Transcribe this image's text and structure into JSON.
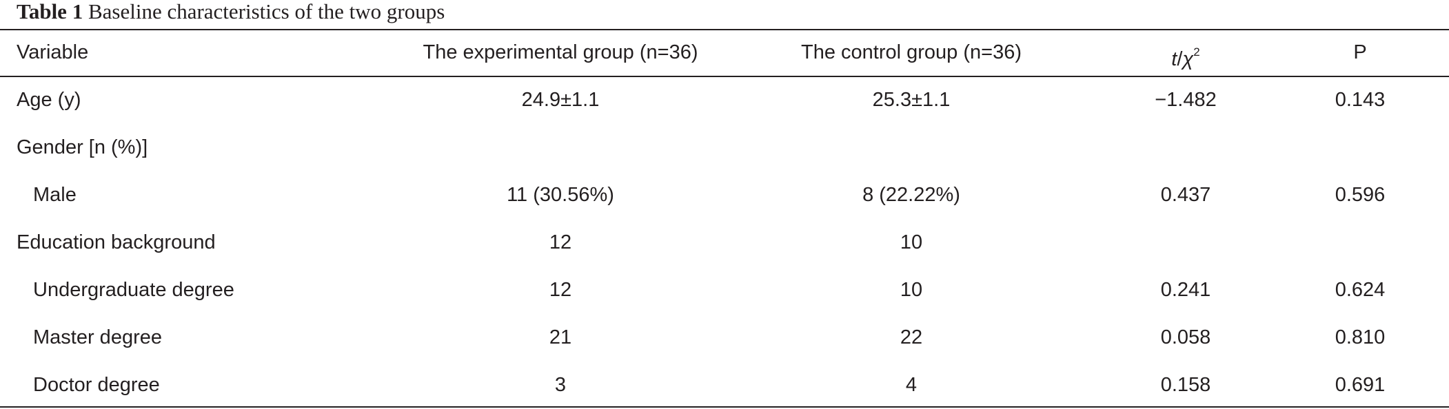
{
  "caption": {
    "label": "Table 1",
    "text": "Baseline characteristics of the two groups"
  },
  "header": {
    "variable": "Variable",
    "experimental": "The experimental group (n=36)",
    "control": "The control group (n=36)",
    "stat_t": "t",
    "stat_slash": "/",
    "stat_chi": "χ",
    "stat_sup": "2",
    "p": "P"
  },
  "rows": [
    {
      "variable": "Age (y)",
      "experimental": "24.9±1.1",
      "control": "25.3±1.1",
      "stat": "−1.482",
      "p": "0.143"
    },
    {
      "variable": "Gender [n (%)]",
      "experimental": "",
      "control": "",
      "stat": "",
      "p": ""
    },
    {
      "variable": "Male",
      "experimental": "11 (30.56%)",
      "control": "8 (22.22%)",
      "stat": "0.437",
      "p": "0.596"
    },
    {
      "variable": "Education background",
      "experimental": "12",
      "control": "10",
      "stat": "",
      "p": ""
    },
    {
      "variable": "Undergraduate degree",
      "experimental": "12",
      "control": "10",
      "stat": "0.241",
      "p": "0.624"
    },
    {
      "variable": "Master degree",
      "experimental": "21",
      "control": "22",
      "stat": "0.058",
      "p": "0.810"
    },
    {
      "variable": "Doctor degree",
      "experimental": "3",
      "control": "4",
      "stat": "0.158",
      "p": "0.691"
    }
  ]
}
